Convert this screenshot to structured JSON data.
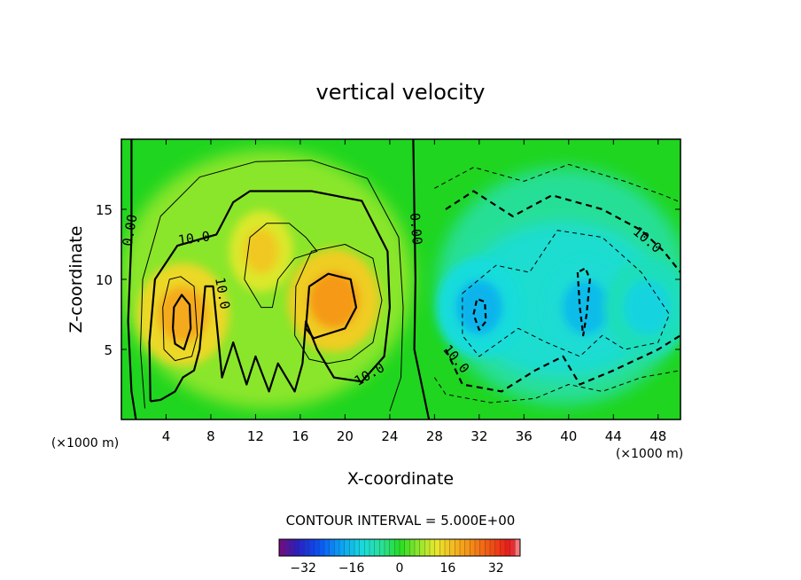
{
  "chart_data": {
    "type": "contour",
    "title": "vertical velocity",
    "xlabel": "X-coordinate",
    "ylabel": "Z-coordinate",
    "x_unit": "(×1000 m)",
    "y_unit": "(×1000 m)",
    "xlim": [
      0,
      50
    ],
    "ylim": [
      0,
      20
    ],
    "x_ticks": [
      4,
      8,
      12,
      16,
      20,
      24,
      28,
      32,
      36,
      40,
      44,
      48
    ],
    "y_ticks": [
      5,
      10,
      15
    ],
    "contour_interval_text": "CONTOUR INTERVAL = 5.000E+00",
    "contour_labels": [
      {
        "text": "0.00",
        "x": 0.8,
        "z": 13.5,
        "angle": -80
      },
      {
        "text": "10.0",
        "x": 6.5,
        "z": 12.9,
        "angle": -8
      },
      {
        "text": "10.0",
        "x": 9.0,
        "z": 9.0,
        "angle": 80
      },
      {
        "text": "10.0",
        "x": 22.2,
        "z": 3.2,
        "angle": -30
      },
      {
        "text": "0.00",
        "x": 26.3,
        "z": 13.6,
        "angle": 85
      },
      {
        "text": "10.0",
        "x": 47.0,
        "z": 12.8,
        "angle": 40
      },
      {
        "text": "10.0",
        "x": 29.9,
        "z": 4.3,
        "angle": 50
      }
    ],
    "features": [
      {
        "type": "updraft",
        "x": 5.5,
        "z": 7.5,
        "peak": 20
      },
      {
        "type": "updraft",
        "x": 19.0,
        "z": 8.5,
        "peak": 22
      },
      {
        "type": "updraft",
        "x": 12.5,
        "z": 12.0,
        "peak": 16
      },
      {
        "type": "downdraft",
        "x": 32.0,
        "z": 8.0,
        "peak": -17
      },
      {
        "type": "downdraft",
        "x": 41.5,
        "z": 8.0,
        "peak": -16
      },
      {
        "type": "downdraft",
        "x": 47.0,
        "z": 8.0,
        "peak": -13
      }
    ],
    "colorbar": {
      "min": -40,
      "max": 40,
      "ticks": [
        -32,
        -16,
        0,
        16,
        32
      ],
      "tick_labels": [
        "−32",
        "−16",
        "0",
        "16",
        "32"
      ]
    }
  }
}
